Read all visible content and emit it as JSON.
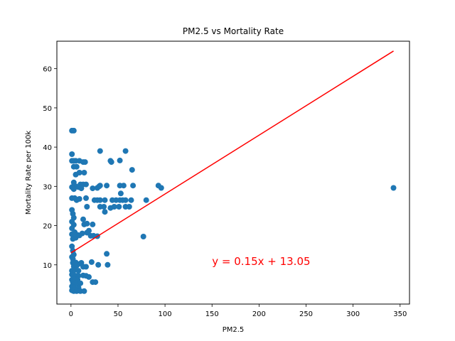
{
  "chart_data": {
    "type": "scatter",
    "title": "PM2.5 vs Mortality Rate",
    "xlabel": "PM2.5",
    "ylabel": "Mortality Rate per 100k",
    "xlim": [
      -15,
      360
    ],
    "ylim": [
      0,
      67
    ],
    "xticks": [
      0,
      50,
      100,
      150,
      200,
      250,
      300,
      350
    ],
    "yticks": [
      10,
      20,
      30,
      40,
      50,
      60
    ],
    "grid": false,
    "colors": {
      "points": "#1f77b4",
      "fit": "#ff0000"
    },
    "points": [
      [
        1,
        44.2
      ],
      [
        3,
        44.2
      ],
      [
        1,
        38.2
      ],
      [
        1,
        36.5
      ],
      [
        3,
        36.5
      ],
      [
        5,
        36.5
      ],
      [
        9,
        36.5
      ],
      [
        13,
        36.2
      ],
      [
        15,
        36.2
      ],
      [
        3,
        35
      ],
      [
        6,
        35
      ],
      [
        5,
        33
      ],
      [
        9,
        33.5
      ],
      [
        14,
        33.5
      ],
      [
        3,
        31
      ],
      [
        10,
        30.5
      ],
      [
        13,
        30.5
      ],
      [
        5,
        30
      ],
      [
        1,
        29.8
      ],
      [
        3,
        29.3
      ],
      [
        8,
        29.8
      ],
      [
        11,
        29.5
      ],
      [
        16,
        30.5
      ],
      [
        1,
        27
      ],
      [
        4,
        27
      ],
      [
        6,
        26.5
      ],
      [
        9,
        26.8
      ],
      [
        16,
        27
      ],
      [
        23,
        29.5
      ],
      [
        28,
        29.6
      ],
      [
        30,
        30
      ],
      [
        31,
        30.2
      ],
      [
        31,
        39
      ],
      [
        58,
        39
      ],
      [
        42,
        36.5
      ],
      [
        43,
        36.2
      ],
      [
        52,
        36.6
      ],
      [
        65,
        34.2
      ],
      [
        38,
        30.2
      ],
      [
        52,
        30.2
      ],
      [
        56,
        30.2
      ],
      [
        66,
        30.2
      ],
      [
        93,
        30.2
      ],
      [
        96,
        29.6
      ],
      [
        25,
        26.5
      ],
      [
        28,
        26.5
      ],
      [
        31,
        26.5
      ],
      [
        36,
        26.5
      ],
      [
        44,
        26.5
      ],
      [
        48,
        26.5
      ],
      [
        52,
        26.5
      ],
      [
        55,
        26.5
      ],
      [
        58,
        26.5
      ],
      [
        64,
        26.5
      ],
      [
        80,
        26.5
      ],
      [
        53,
        28.2
      ],
      [
        35,
        24.8
      ],
      [
        42,
        24.5
      ],
      [
        46,
        24.8
      ],
      [
        51,
        24.8
      ],
      [
        58,
        24.8
      ],
      [
        62,
        24.8
      ],
      [
        31,
        24.8
      ],
      [
        36,
        23.5
      ],
      [
        17,
        24.8
      ],
      [
        1,
        24
      ],
      [
        2,
        23
      ],
      [
        3,
        22
      ],
      [
        1,
        21
      ],
      [
        3,
        20.2
      ],
      [
        1,
        19.3
      ],
      [
        4,
        18.3
      ],
      [
        1,
        17.8
      ],
      [
        2,
        16.6
      ],
      [
        5,
        16.9
      ],
      [
        7,
        17.6
      ],
      [
        9,
        17.5
      ],
      [
        12,
        18
      ],
      [
        14,
        20.3
      ],
      [
        17,
        18.2
      ],
      [
        19,
        18.7
      ],
      [
        21,
        17.4
      ],
      [
        24,
        17.4
      ],
      [
        28,
        17.3
      ],
      [
        13,
        21.6
      ],
      [
        17,
        20.5
      ],
      [
        23,
        20.3
      ],
      [
        77,
        17.2
      ],
      [
        1,
        14.7
      ],
      [
        2,
        13.6
      ],
      [
        3,
        12.6
      ],
      [
        1,
        12
      ],
      [
        38,
        12.8
      ],
      [
        2,
        11.5
      ],
      [
        2,
        10.5
      ],
      [
        5,
        10.6
      ],
      [
        8,
        10.2
      ],
      [
        11,
        10.5
      ],
      [
        22,
        10.7
      ],
      [
        29,
        10
      ],
      [
        39,
        10
      ],
      [
        3,
        9.6
      ],
      [
        6,
        9.8
      ],
      [
        13,
        9.5
      ],
      [
        16,
        9.5
      ],
      [
        1,
        8.5
      ],
      [
        4,
        8.7
      ],
      [
        8,
        8.5
      ],
      [
        1,
        7.5
      ],
      [
        3,
        7.4
      ],
      [
        6,
        7.2
      ],
      [
        8,
        7.2
      ],
      [
        13,
        7.3
      ],
      [
        16,
        7.2
      ],
      [
        19,
        6.9
      ],
      [
        1,
        6.2
      ],
      [
        4,
        6.3
      ],
      [
        7,
        6.2
      ],
      [
        2,
        5.5
      ],
      [
        5,
        5.3
      ],
      [
        10,
        5.3
      ],
      [
        23,
        5.6
      ],
      [
        26,
        5.6
      ],
      [
        1,
        4.5
      ],
      [
        3,
        4.2
      ],
      [
        8,
        4.2
      ],
      [
        1,
        3.5
      ],
      [
        3,
        3.3
      ],
      [
        6,
        3.3
      ],
      [
        10,
        3.3
      ],
      [
        14,
        3.3
      ],
      [
        343,
        29.6
      ]
    ],
    "fit_line": {
      "slope": 0.15,
      "intercept": 13.05,
      "x_range": [
        0,
        343
      ]
    },
    "annotation": {
      "text": "y = 0.15x + 13.05",
      "x": 150,
      "y": 10
    }
  }
}
